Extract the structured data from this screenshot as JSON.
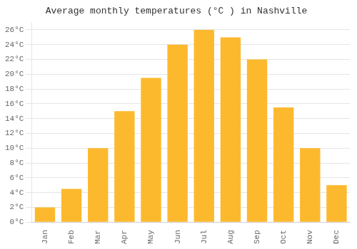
{
  "chart_data": {
    "type": "bar",
    "title": "Average monthly temperatures (°C ) in Nashville",
    "categories": [
      "Jan",
      "Feb",
      "Mar",
      "Apr",
      "May",
      "Jun",
      "Jul",
      "Aug",
      "Sep",
      "Oct",
      "Nov",
      "Dec"
    ],
    "values": [
      2,
      4.5,
      10,
      15,
      19.5,
      24,
      26,
      25,
      22,
      15.5,
      10,
      5
    ],
    "color": "#FDB92E",
    "ylim": [
      0,
      27
    ],
    "yticks": [
      {
        "value": 0,
        "label": "0°C"
      },
      {
        "value": 2,
        "label": "2°C"
      },
      {
        "value": 4,
        "label": "4°C"
      },
      {
        "value": 6,
        "label": "6°C"
      },
      {
        "value": 8,
        "label": "8°C"
      },
      {
        "value": 10,
        "label": "10°C"
      },
      {
        "value": 12,
        "label": "12°C"
      },
      {
        "value": 14,
        "label": "14°C"
      },
      {
        "value": 16,
        "label": "16°C"
      },
      {
        "value": 18,
        "label": "18°C"
      },
      {
        "value": 20,
        "label": "20°C"
      },
      {
        "value": 22,
        "label": "22°C"
      },
      {
        "value": 24,
        "label": "24°C"
      },
      {
        "value": 26,
        "label": "26°C"
      }
    ],
    "grid": true
  }
}
